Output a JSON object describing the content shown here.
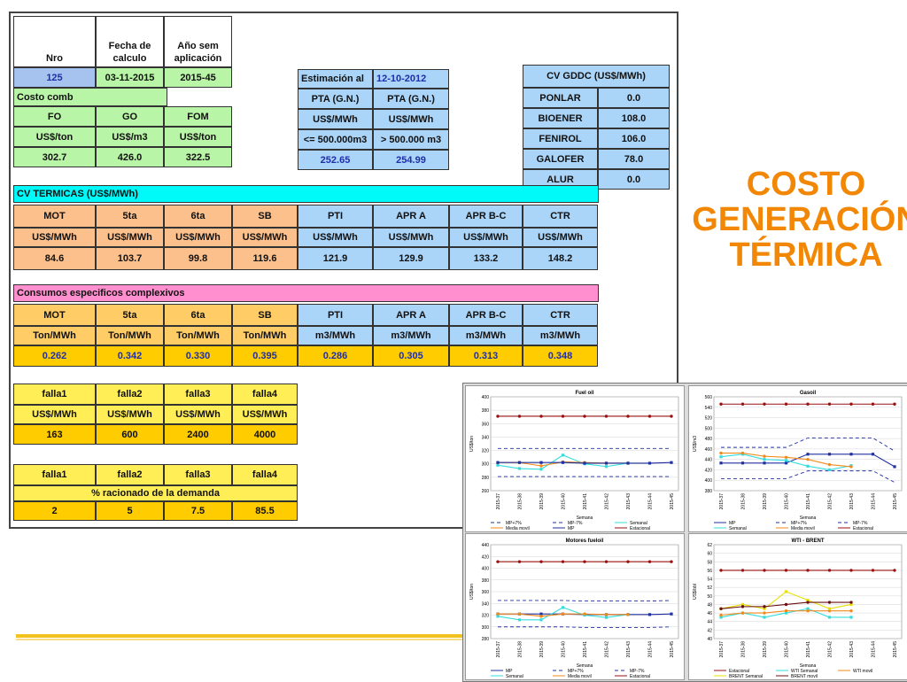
{
  "header": {
    "nro_label": "Nro",
    "fecha_label": "Fecha de calculo",
    "anio_label": "Año sem aplicación",
    "nro": "125",
    "fecha": "03-11-2015",
    "anio": "2015-45"
  },
  "costo_comb": {
    "title": "Costo comb",
    "cols": [
      "FO",
      "GO",
      "FOM"
    ],
    "units": [
      "US$/ton",
      "US$/m3",
      "US$/ton"
    ],
    "values": [
      "302.7",
      "426.0",
      "322.5"
    ]
  },
  "estimacion": {
    "label": "Estimación al",
    "date": "12-10-2012",
    "cols": [
      "PTA (G.N.)",
      "PTA (G.N.)"
    ],
    "units": [
      "US$/MWh",
      "US$/MWh"
    ],
    "ranges": [
      "<= 500.000m3",
      "> 500.000 m3"
    ],
    "values": [
      "252.65",
      "254.99"
    ]
  },
  "cv_gddc": {
    "title": "CV GDDC (US$/MWh)",
    "rows": [
      {
        "name": "PONLAR",
        "value": "0.0"
      },
      {
        "name": "BIOENER",
        "value": "108.0"
      },
      {
        "name": "FENIROL",
        "value": "106.0"
      },
      {
        "name": "GALOFER",
        "value": "78.0"
      },
      {
        "name": "ALUR",
        "value": "0.0"
      }
    ]
  },
  "cv_termicas": {
    "title": "CV TERMICAS (US$/MWh)",
    "cols": [
      "MOT",
      "5ta",
      "6ta",
      "SB",
      "PTI",
      "APR A",
      "APR B-C",
      "CTR"
    ],
    "units": [
      "US$/MWh",
      "US$/MWh",
      "US$/MWh",
      "US$/MWh",
      "US$/MWh",
      "US$/MWh",
      "US$/MWh",
      "US$/MWh"
    ],
    "values": [
      "84.6",
      "103.7",
      "99.8",
      "119.6",
      "121.9",
      "129.9",
      "133.2",
      "148.2"
    ]
  },
  "consumos": {
    "title": "Consumos especificos complexivos",
    "cols": [
      "MOT",
      "5ta",
      "6ta",
      "SB",
      "PTI",
      "APR A",
      "APR B-C",
      "CTR"
    ],
    "units": [
      "Ton/MWh",
      "Ton/MWh",
      "Ton/MWh",
      "Ton/MWh",
      "m3/MWh",
      "m3/MWh",
      "m3/MWh",
      "m3/MWh"
    ],
    "values": [
      "0.262",
      "0.342",
      "0.330",
      "0.395",
      "0.286",
      "0.305",
      "0.313",
      "0.348"
    ]
  },
  "falla_costos": {
    "cols": [
      "falla1",
      "falla2",
      "falla3",
      "falla4"
    ],
    "units": [
      "US$/MWh",
      "US$/MWh",
      "US$/MWh",
      "US$/MWh"
    ],
    "values": [
      "163",
      "600",
      "2400",
      "4000"
    ]
  },
  "falla_racionado": {
    "cols": [
      "falla1",
      "falla2",
      "falla3",
      "falla4"
    ],
    "label": "% racionado de la demanda",
    "values": [
      "2",
      "5",
      "7.5",
      "85.5"
    ]
  },
  "slide_title": [
    "COSTO",
    "GENERACIÓN",
    "TÉRMICA"
  ],
  "colors": {
    "green": "#b9f5a6",
    "cyan": "#00fafa",
    "pink": "#ff8fcf",
    "orange": "#ffcc66",
    "salmon": "#fbc08c",
    "blue_cell": "#aad4f8",
    "lavender": "#a6c2ef",
    "yellow": "#ffee55",
    "gold": "#ffcc00",
    "title": "#f28705"
  },
  "chart_data": [
    {
      "type": "line",
      "title": "Fuel oil",
      "ylabel": "US$/ton",
      "xlabel": "Semana",
      "ylim": [
        260,
        400
      ],
      "yticks": [
        260,
        280,
        300,
        320,
        340,
        360,
        380,
        400
      ],
      "x": [
        "2015-37",
        "2015-38",
        "2015-39",
        "2015-40",
        "2015-41",
        "2015-42",
        "2015-43",
        "2015-44",
        "2015-45"
      ],
      "series": [
        {
          "name": "MP+7%",
          "values": [
            323,
            323,
            323,
            323,
            323,
            323,
            323,
            323,
            323
          ]
        },
        {
          "name": "MP-7%",
          "values": [
            281,
            281,
            281,
            281,
            281,
            281,
            281,
            281,
            281
          ]
        },
        {
          "name": "Semanal",
          "values": [
            298,
            293,
            292,
            313,
            300,
            296,
            301,
            null,
            null
          ]
        },
        {
          "name": "Media movil",
          "values": [
            302,
            302,
            297,
            303,
            302,
            301,
            301,
            null,
            null
          ]
        },
        {
          "name": "MP",
          "values": [
            302,
            302,
            302,
            302,
            301,
            301,
            301,
            301,
            302
          ]
        },
        {
          "name": "Estacional",
          "values": [
            371,
            371,
            371,
            371,
            371,
            371,
            371,
            371,
            371
          ]
        }
      ],
      "legend": [
        "MP+7%",
        "MP-7%",
        "Semanal",
        "Media movil",
        "MP",
        "Estacional"
      ]
    },
    {
      "type": "line",
      "title": "Gasoil",
      "ylabel": "US$/m3",
      "xlabel": "Semana",
      "ylim": [
        380,
        560
      ],
      "yticks": [
        380,
        400,
        420,
        440,
        460,
        480,
        500,
        520,
        540,
        560
      ],
      "x": [
        "2015-37",
        "2015-38",
        "2015-39",
        "2015-40",
        "2015-41",
        "2015-42",
        "2015-43",
        "2015-44",
        "2015-45"
      ],
      "series": [
        {
          "name": "MP",
          "values": [
            433,
            433,
            433,
            433,
            450,
            450,
            450,
            450,
            426
          ]
        },
        {
          "name": "MP+7%",
          "values": [
            463,
            463,
            463,
            463,
            481,
            481,
            481,
            481,
            456
          ]
        },
        {
          "name": "MP-7%",
          "values": [
            403,
            403,
            403,
            403,
            418,
            418,
            418,
            418,
            396
          ]
        },
        {
          "name": "Semanal",
          "values": [
            445,
            450,
            440,
            438,
            427,
            420,
            428,
            null,
            null
          ]
        },
        {
          "name": "Media movil",
          "values": [
            452,
            452,
            446,
            444,
            440,
            430,
            426,
            null,
            null
          ]
        },
        {
          "name": "Estacional",
          "values": [
            546,
            546,
            546,
            546,
            546,
            546,
            546,
            546,
            546
          ]
        }
      ],
      "legend": [
        "MP",
        "MP+7%",
        "MP-7%",
        "Semanal",
        "Media movil",
        "Estacional"
      ]
    },
    {
      "type": "line",
      "title": "Motores fueloil",
      "ylabel": "US$/ton",
      "xlabel": "Semana",
      "ylim": [
        280,
        440
      ],
      "yticks": [
        280,
        300,
        320,
        340,
        360,
        380,
        400,
        420,
        440
      ],
      "x": [
        "2015-37",
        "2015-38",
        "2015-39",
        "2015-40",
        "2015-41",
        "2015-42",
        "2015-43",
        "2015-44",
        "2015-45"
      ],
      "series": [
        {
          "name": "MP",
          "values": [
            322,
            322,
            322,
            322,
            321,
            321,
            321,
            321,
            322
          ]
        },
        {
          "name": "MP+7%",
          "values": [
            345,
            345,
            345,
            345,
            344,
            344,
            344,
            344,
            345
          ]
        },
        {
          "name": "MP-7%",
          "values": [
            300,
            300,
            300,
            300,
            299,
            299,
            299,
            299,
            300
          ]
        },
        {
          "name": "Semanal",
          "values": [
            318,
            312,
            312,
            333,
            320,
            316,
            321,
            null,
            null
          ]
        },
        {
          "name": "Media movil",
          "values": [
            322,
            322,
            318,
            322,
            322,
            321,
            321,
            null,
            null
          ]
        },
        {
          "name": "Estacional",
          "values": [
            411,
            411,
            411,
            411,
            411,
            411,
            411,
            411,
            411
          ]
        }
      ],
      "legend": [
        "MP",
        "MP+7%",
        "MP-7%",
        "Semanal",
        "Media movil",
        "Estacional"
      ]
    },
    {
      "type": "line",
      "title": "WTI - BRENT",
      "ylabel": "US$/bbl",
      "xlabel": "Semana",
      "ylim": [
        40,
        62
      ],
      "yticks": [
        40,
        42,
        44,
        46,
        48,
        50,
        52,
        54,
        56,
        58,
        60,
        62
      ],
      "x": [
        "2015-37",
        "2015-38",
        "2015-39",
        "2015-40",
        "2015-41",
        "2015-42",
        "2015-43",
        "2015-44",
        "2015-45"
      ],
      "series": [
        {
          "name": "Estacional",
          "values": [
            56,
            56,
            56,
            56,
            56,
            56,
            56,
            56,
            56
          ]
        },
        {
          "name": "WTI Semanal",
          "values": [
            45,
            46,
            45,
            46,
            47,
            45,
            45,
            null,
            null
          ]
        },
        {
          "name": "WTI movil",
          "values": [
            45.5,
            46,
            46,
            46.5,
            46.5,
            46.5,
            46.5,
            null,
            null
          ]
        },
        {
          "name": "BRENT Semanal",
          "values": [
            47,
            48,
            47,
            51,
            49,
            47,
            48,
            null,
            null
          ]
        },
        {
          "name": "BRENT movil",
          "values": [
            47,
            47.5,
            47.5,
            48,
            48.5,
            48.5,
            48.5,
            null,
            null
          ]
        }
      ],
      "legend": [
        "Estacional",
        "WTI Semanal",
        "WTI movil",
        "BRENT Semanal",
        "BRENT movil"
      ]
    }
  ]
}
